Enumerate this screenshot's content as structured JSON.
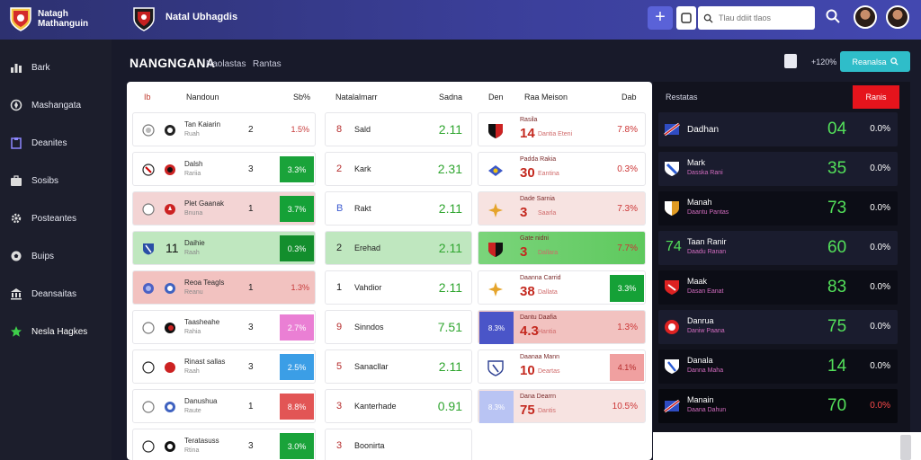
{
  "app": {
    "title_line1": "Natagh",
    "title_line2": "Mathanguin",
    "team_name": "Natal Ubhagdis",
    "search_placeholder": "Tlau ddiit tlaos"
  },
  "colors": {
    "accent_blue": "#5a62d8",
    "teal_button": "#2fbdc9",
    "red_button": "#e5141c",
    "green": "#16a33a",
    "green_text": "#53e05a"
  },
  "sidebar": {
    "items": [
      {
        "label": "Bark",
        "icon": "chart-bars-icon"
      },
      {
        "label": "Mashangata",
        "icon": "compass-icon"
      },
      {
        "label": "Deanites",
        "icon": "clipboard-icon"
      },
      {
        "label": "Sosibs",
        "icon": "briefcase-icon"
      },
      {
        "label": "Posteantes",
        "icon": "gear-icon"
      },
      {
        "label": "Buips",
        "icon": "soccer-ball-icon"
      },
      {
        "label": "Deansaitas",
        "icon": "bank-icon"
      },
      {
        "label": "Nesla Hagkes",
        "icon": "star-icon"
      }
    ]
  },
  "header": {
    "title": "NANGNGANA",
    "sub1": "Naolastas",
    "sub2": "Rantas",
    "pct": "+120%",
    "button_label": "Reanalsa"
  },
  "columns": {
    "h1": "Ib",
    "h2": "Nandoun",
    "h3": "Sb%",
    "h4": "Natalalmarr",
    "h5": "Sadna",
    "h6": "Den",
    "h7": "Raa Meison",
    "h8": "Dab"
  },
  "col1": [
    {
      "name": "Tan Kaiarin",
      "sub": "Ruah",
      "num": "2",
      "value": "1.5%",
      "badge_color": ""
    },
    {
      "name": "Dalsh",
      "sub": "Rariia",
      "num": "3",
      "value": "3.3%",
      "badge_color": "#1aa33a"
    },
    {
      "name": "Plet Gaanak",
      "sub": "Bnuna",
      "num": "1",
      "value": "3.7%",
      "badge_color": "#15a137"
    },
    {
      "name": "Daihie",
      "sub": "Raah",
      "num": "11",
      "value": "0.3%",
      "badge_color": "#138e2d"
    },
    {
      "name": "Reoa Teagls",
      "sub": "Reanu",
      "num": "1",
      "value": "1.3%",
      "badge_color": ""
    },
    {
      "name": "Taasheahe",
      "sub": "Rahia",
      "num": "3",
      "value": "2.7%",
      "badge_color": "#ea7fd4"
    },
    {
      "name": "Rinast sallas",
      "sub": "Raah",
      "num": "3",
      "value": "2.5%",
      "badge_color": "#3b9ee6"
    },
    {
      "name": "Danushua",
      "sub": "Raute",
      "num": "1",
      "value": "8.8%",
      "badge_color": "#e25555"
    },
    {
      "name": "Teratasuss",
      "sub": "Rtina",
      "num": "3",
      "value": "3.0%",
      "badge_color": "#1aa33a"
    }
  ],
  "col2": [
    {
      "num": "8",
      "name": "Sald",
      "value": "2.11"
    },
    {
      "num": "2",
      "name": "Kark",
      "value": "2.31"
    },
    {
      "num": "B",
      "name": "Rakt",
      "value": "2.11"
    },
    {
      "num": "2",
      "name": "Erehad",
      "value": "2.11"
    },
    {
      "num": "1",
      "name": "Vahdior",
      "value": "2.11"
    },
    {
      "num": "9",
      "name": "Sinndos",
      "value": "7.51"
    },
    {
      "num": "5",
      "name": "Sanacllar",
      "value": "2.11"
    },
    {
      "num": "3",
      "name": "Kanterhade",
      "value": "0.91"
    },
    {
      "num": "3",
      "name": "Boonirta",
      "value": ""
    }
  ],
  "col3": [
    {
      "top": "Rasila",
      "num": "14",
      "sub": "Dantia Eteni",
      "value": "7.8%",
      "box": "",
      "badge": "",
      "badge_color": ""
    },
    {
      "top": "Padda Rakia",
      "num": "30",
      "sub": "Eantina",
      "value": "0.3%",
      "box": "",
      "badge": "",
      "badge_color": ""
    },
    {
      "top": "Dade Sarnia",
      "num": "3",
      "sub": "Saarla",
      "value": "7.3%",
      "box": "",
      "badge": "",
      "badge_color": ""
    },
    {
      "top": "Gate nidni",
      "num": "3",
      "sub": "Dallara",
      "value": "7.7%",
      "box": "",
      "badge": "",
      "badge_color": ""
    },
    {
      "top": "Daanna Carrid",
      "num": "38",
      "sub": "Dallata",
      "value": "",
      "box": "",
      "badge": "3.3%",
      "badge_color": "#15a137"
    },
    {
      "top": "Dantu Daafia",
      "num": "4.3",
      "sub": "Hantia",
      "value": "1.3%",
      "box": "8.3%",
      "badge": "",
      "badge_color": ""
    },
    {
      "top": "Daanaa Mann",
      "num": "10",
      "sub": "Deartas",
      "value": "",
      "box": "",
      "badge": "4.1%",
      "badge_color": "#f0a0a0"
    },
    {
      "top": "Dana Dearrn",
      "num": "75",
      "sub": "Dantis",
      "value": "10.5%",
      "box": "8.3%",
      "badge": "",
      "badge_color": ""
    }
  ],
  "right": {
    "title": "Restatas",
    "button_label": "Ranis",
    "rows": [
      {
        "name": "Dadhan",
        "sub": "",
        "big": "04",
        "pct": "0.0%"
      },
      {
        "name": "Mark",
        "sub": "Dasska Rani",
        "big": "35",
        "pct": "0.0%"
      },
      {
        "name": "Manah",
        "sub": "Daantu Pantas",
        "big": "73",
        "pct": "0.0%"
      },
      {
        "name": "Taan Ranir",
        "sub": "Daadu Ranan",
        "big": "60",
        "pct": "0.0%"
      },
      {
        "name": "Maak",
        "sub": "Dasan Eanat",
        "big": "83",
        "pct": "0.0%"
      },
      {
        "name": "Danrua",
        "sub": "Daniw Paana",
        "big": "75",
        "pct": "0.0%"
      },
      {
        "name": "Danala",
        "sub": "Danna Maha",
        "big": "14",
        "pct": "0.0%"
      },
      {
        "name": "Manain",
        "sub": "Daana Dahun",
        "big": "70",
        "pct": "0.0%"
      }
    ]
  }
}
